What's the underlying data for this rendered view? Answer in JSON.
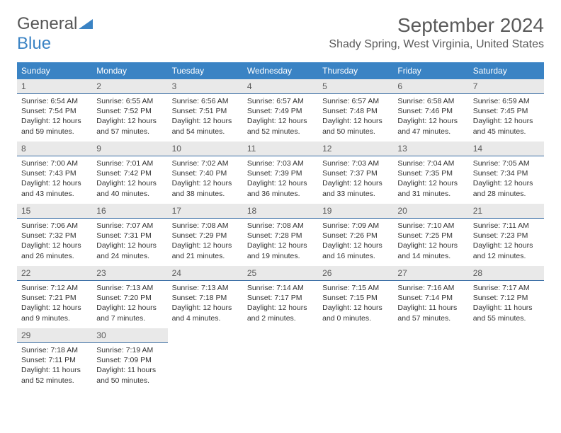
{
  "brand": {
    "part1": "General",
    "part2": "Blue"
  },
  "title": "September 2024",
  "location": "Shady Spring, West Virginia, United States",
  "colors": {
    "header_bg": "#3a83c4",
    "header_text": "#ffffff",
    "daynum_bg": "#e9e9e9",
    "daynum_border": "#3a6ea5",
    "text": "#333333",
    "title_text": "#5a5a5a"
  },
  "weekdays": [
    "Sunday",
    "Monday",
    "Tuesday",
    "Wednesday",
    "Thursday",
    "Friday",
    "Saturday"
  ],
  "days": [
    {
      "n": 1,
      "sunrise": "6:54 AM",
      "sunset": "7:54 PM",
      "daylight": "12 hours and 59 minutes."
    },
    {
      "n": 2,
      "sunrise": "6:55 AM",
      "sunset": "7:52 PM",
      "daylight": "12 hours and 57 minutes."
    },
    {
      "n": 3,
      "sunrise": "6:56 AM",
      "sunset": "7:51 PM",
      "daylight": "12 hours and 54 minutes."
    },
    {
      "n": 4,
      "sunrise": "6:57 AM",
      "sunset": "7:49 PM",
      "daylight": "12 hours and 52 minutes."
    },
    {
      "n": 5,
      "sunrise": "6:57 AM",
      "sunset": "7:48 PM",
      "daylight": "12 hours and 50 minutes."
    },
    {
      "n": 6,
      "sunrise": "6:58 AM",
      "sunset": "7:46 PM",
      "daylight": "12 hours and 47 minutes."
    },
    {
      "n": 7,
      "sunrise": "6:59 AM",
      "sunset": "7:45 PM",
      "daylight": "12 hours and 45 minutes."
    },
    {
      "n": 8,
      "sunrise": "7:00 AM",
      "sunset": "7:43 PM",
      "daylight": "12 hours and 43 minutes."
    },
    {
      "n": 9,
      "sunrise": "7:01 AM",
      "sunset": "7:42 PM",
      "daylight": "12 hours and 40 minutes."
    },
    {
      "n": 10,
      "sunrise": "7:02 AM",
      "sunset": "7:40 PM",
      "daylight": "12 hours and 38 minutes."
    },
    {
      "n": 11,
      "sunrise": "7:03 AM",
      "sunset": "7:39 PM",
      "daylight": "12 hours and 36 minutes."
    },
    {
      "n": 12,
      "sunrise": "7:03 AM",
      "sunset": "7:37 PM",
      "daylight": "12 hours and 33 minutes."
    },
    {
      "n": 13,
      "sunrise": "7:04 AM",
      "sunset": "7:35 PM",
      "daylight": "12 hours and 31 minutes."
    },
    {
      "n": 14,
      "sunrise": "7:05 AM",
      "sunset": "7:34 PM",
      "daylight": "12 hours and 28 minutes."
    },
    {
      "n": 15,
      "sunrise": "7:06 AM",
      "sunset": "7:32 PM",
      "daylight": "12 hours and 26 minutes."
    },
    {
      "n": 16,
      "sunrise": "7:07 AM",
      "sunset": "7:31 PM",
      "daylight": "12 hours and 24 minutes."
    },
    {
      "n": 17,
      "sunrise": "7:08 AM",
      "sunset": "7:29 PM",
      "daylight": "12 hours and 21 minutes."
    },
    {
      "n": 18,
      "sunrise": "7:08 AM",
      "sunset": "7:28 PM",
      "daylight": "12 hours and 19 minutes."
    },
    {
      "n": 19,
      "sunrise": "7:09 AM",
      "sunset": "7:26 PM",
      "daylight": "12 hours and 16 minutes."
    },
    {
      "n": 20,
      "sunrise": "7:10 AM",
      "sunset": "7:25 PM",
      "daylight": "12 hours and 14 minutes."
    },
    {
      "n": 21,
      "sunrise": "7:11 AM",
      "sunset": "7:23 PM",
      "daylight": "12 hours and 12 minutes."
    },
    {
      "n": 22,
      "sunrise": "7:12 AM",
      "sunset": "7:21 PM",
      "daylight": "12 hours and 9 minutes."
    },
    {
      "n": 23,
      "sunrise": "7:13 AM",
      "sunset": "7:20 PM",
      "daylight": "12 hours and 7 minutes."
    },
    {
      "n": 24,
      "sunrise": "7:13 AM",
      "sunset": "7:18 PM",
      "daylight": "12 hours and 4 minutes."
    },
    {
      "n": 25,
      "sunrise": "7:14 AM",
      "sunset": "7:17 PM",
      "daylight": "12 hours and 2 minutes."
    },
    {
      "n": 26,
      "sunrise": "7:15 AM",
      "sunset": "7:15 PM",
      "daylight": "12 hours and 0 minutes."
    },
    {
      "n": 27,
      "sunrise": "7:16 AM",
      "sunset": "7:14 PM",
      "daylight": "11 hours and 57 minutes."
    },
    {
      "n": 28,
      "sunrise": "7:17 AM",
      "sunset": "7:12 PM",
      "daylight": "11 hours and 55 minutes."
    },
    {
      "n": 29,
      "sunrise": "7:18 AM",
      "sunset": "7:11 PM",
      "daylight": "11 hours and 52 minutes."
    },
    {
      "n": 30,
      "sunrise": "7:19 AM",
      "sunset": "7:09 PM",
      "daylight": "11 hours and 50 minutes."
    }
  ],
  "labels": {
    "sunrise": "Sunrise:",
    "sunset": "Sunset:",
    "daylight": "Daylight:"
  }
}
